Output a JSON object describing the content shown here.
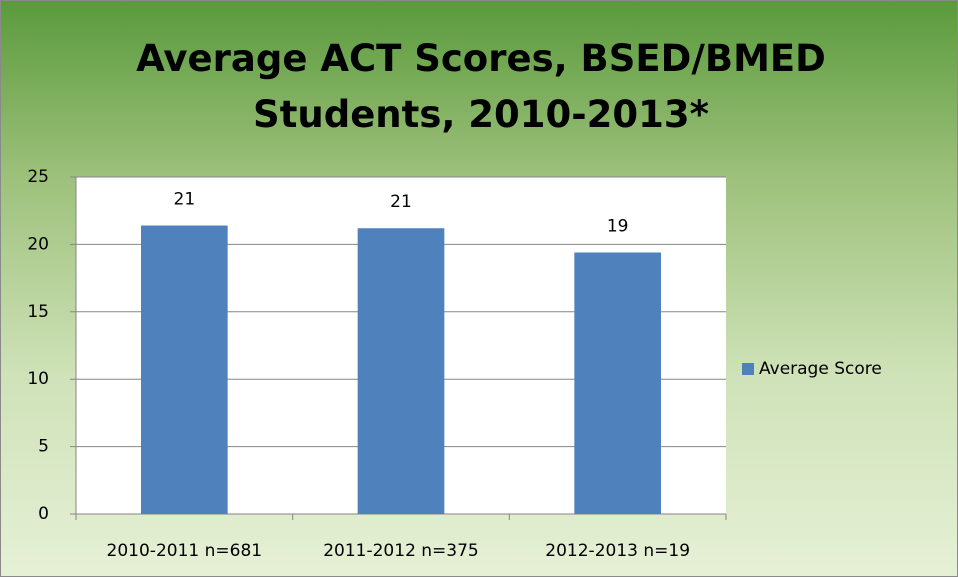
{
  "chart_data": {
    "type": "bar",
    "title": "Average ACT Scores, BSED/BMED Students, 2010-2013*",
    "categories": [
      "2010-2011 n=681",
      "2011-2012 n=375",
      "2012-2013 n=19"
    ],
    "series": [
      {
        "name": "Average Score",
        "color": "#4f81bd",
        "values": [
          21.4,
          21.2,
          19.4
        ],
        "value_labels": [
          "21",
          "21",
          "19"
        ]
      }
    ],
    "ylim": [
      0,
      25
    ],
    "yticks": [
      0,
      5,
      10,
      15,
      20,
      25
    ],
    "grid": true,
    "legend": "right"
  }
}
